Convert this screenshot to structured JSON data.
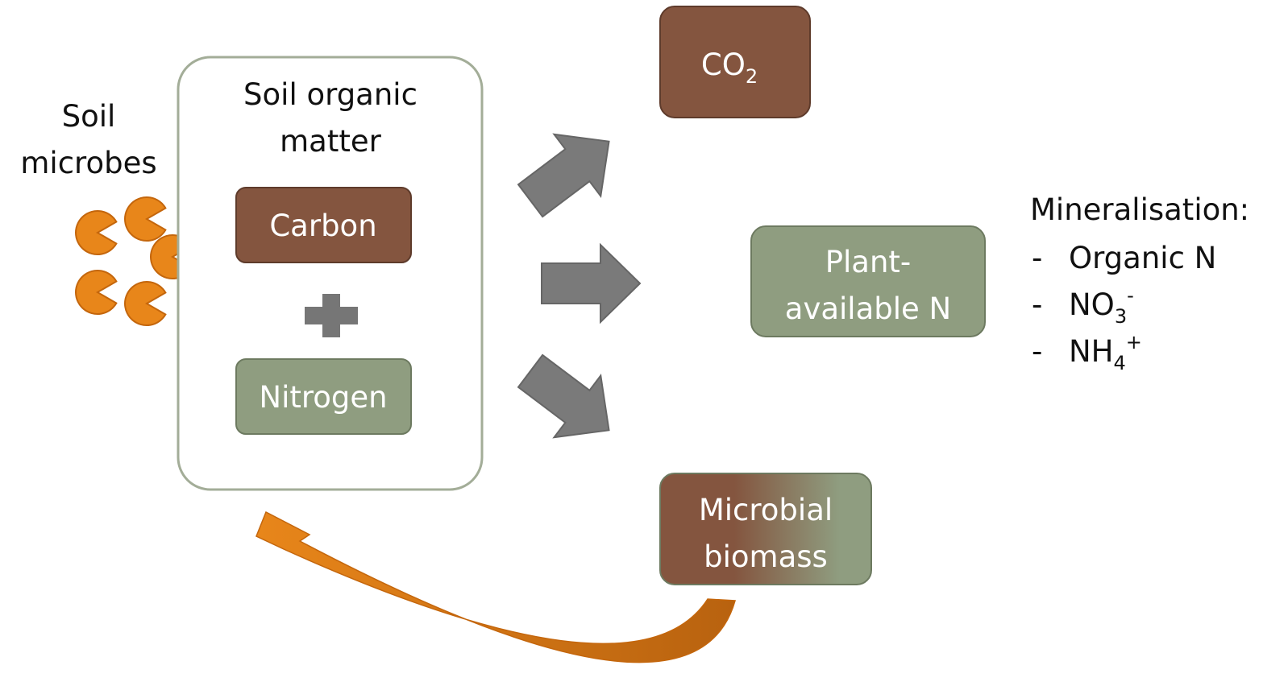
{
  "microbes_label": [
    "Soil",
    "microbes"
  ],
  "soil_organic_matter": {
    "label": [
      "Soil organic",
      "matter"
    ],
    "carbon": "Carbon",
    "nitrogen": "Nitrogen"
  },
  "co2": {
    "text": "CO",
    "sub": "2"
  },
  "plant_available_n": [
    "Plant-",
    "available N"
  ],
  "microbial_biomass": [
    "Microbial",
    "biomass"
  ],
  "mineralisation": {
    "title": "Mineralisation:",
    "bullet": "-",
    "items": [
      {
        "text": "Organic N"
      },
      {
        "text": "NO",
        "sub": "3",
        "sup": "-"
      },
      {
        "text": "NH",
        "sub": "4",
        "sup": "+"
      }
    ]
  }
}
